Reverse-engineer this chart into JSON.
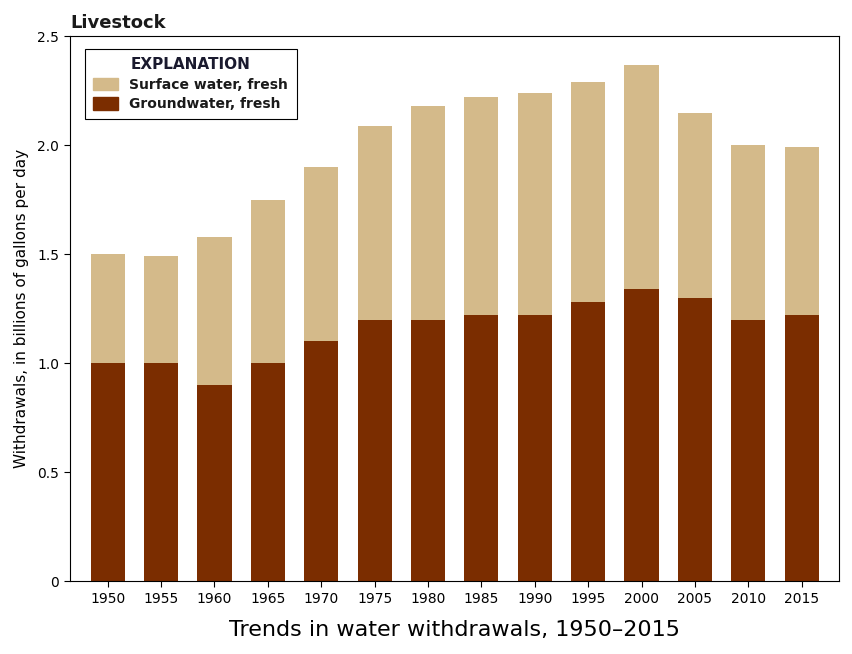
{
  "years": [
    1950,
    1955,
    1960,
    1965,
    1970,
    1975,
    1980,
    1985,
    1990,
    1995,
    2000,
    2005,
    2010,
    2015
  ],
  "groundwater": [
    1.0,
    1.0,
    0.9,
    1.0,
    1.1,
    1.2,
    1.2,
    1.22,
    1.22,
    1.28,
    1.34,
    1.3,
    1.2,
    1.22
  ],
  "surface_water": [
    0.5,
    0.49,
    0.68,
    0.75,
    0.8,
    0.89,
    0.98,
    1.0,
    1.02,
    1.01,
    1.03,
    0.85,
    0.8,
    0.77
  ],
  "groundwater_color": "#7B2D00",
  "surface_water_color": "#D4BA8A",
  "bar_width": 3.2,
  "xlim": [
    1946.5,
    2018.5
  ],
  "ylim": [
    0,
    2.5
  ],
  "yticks": [
    0,
    0.5,
    1.0,
    1.5,
    2.0,
    2.5
  ],
  "ytick_labels": [
    "0",
    "0.5",
    "1.0",
    "1.5",
    "2.0",
    "2.5"
  ],
  "title": "Livestock",
  "xlabel": "Trends in water withdrawals, 1950–2015",
  "ylabel": "Withdrawals, in billions of gallons per day",
  "legend_title": "EXPLANATION",
  "legend_surface": "Surface water, fresh",
  "legend_ground": "Groundwater, fresh",
  "title_color": "#1a1a1a",
  "legend_title_color": "#1a1a2e",
  "xlabel_color": "#000000",
  "ylabel_color": "#000000",
  "xlabel_fontsize": 16,
  "ylabel_fontsize": 11,
  "title_fontsize": 13,
  "tick_fontsize": 10,
  "legend_fontsize": 10,
  "legend_title_fontsize": 11
}
